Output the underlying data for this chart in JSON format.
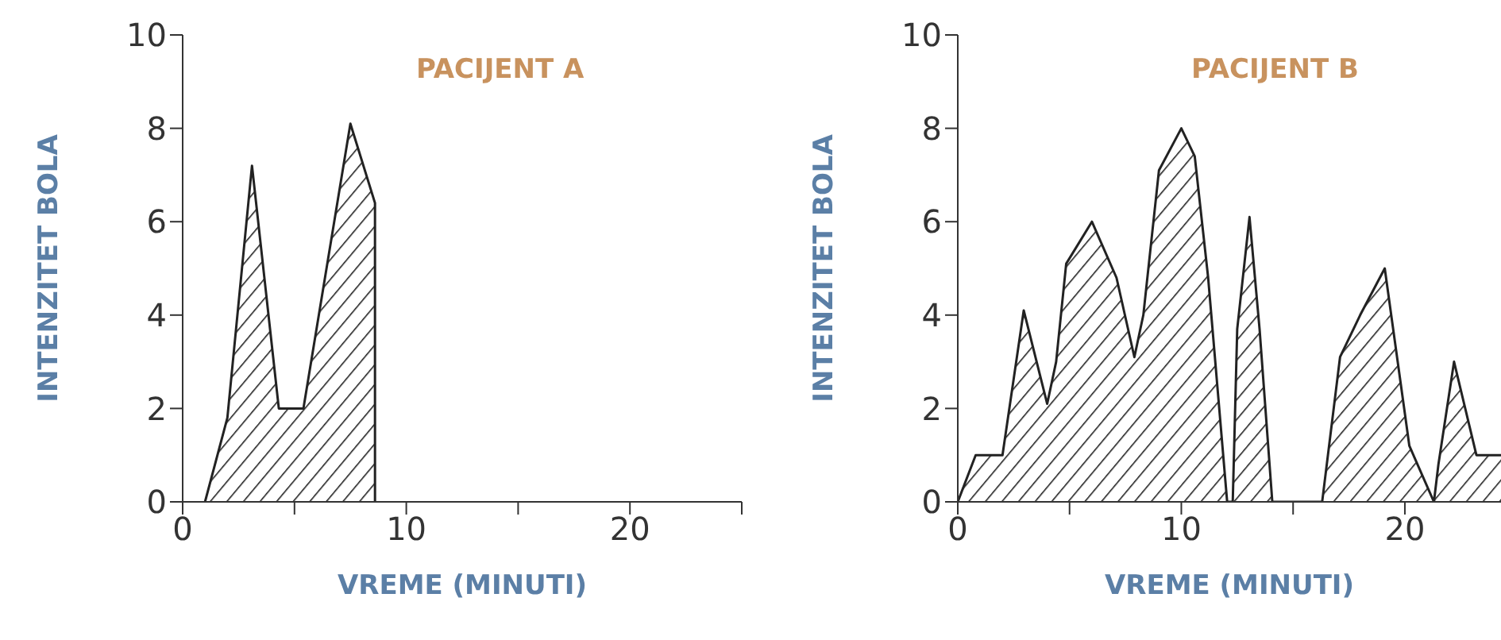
{
  "chart_data": [
    {
      "type": "area",
      "title": "PACIJENT A",
      "xlabel": "VREME (MINUTI)",
      "ylabel": "INTENZITET BOLA",
      "xlim": [
        0,
        25
      ],
      "xticks": [
        0,
        {
          "value": 5,
          "label": null
        },
        10,
        {
          "value": 15,
          "label": null
        },
        20,
        {
          "value": 25,
          "label": null
        }
      ],
      "ylim": [
        0,
        10
      ],
      "yticks": [
        0,
        2,
        4,
        6,
        8,
        10
      ],
      "series": [
        {
          "color": "#222222",
          "x": [
            1,
            2,
            3.1,
            4.3,
            5.4,
            7.5,
            8.6,
            8.6
          ],
          "values": [
            0,
            1.8,
            7.2,
            2,
            2,
            8.1,
            6.4,
            0
          ]
        }
      ]
    },
    {
      "type": "area",
      "title": "PACIJENT B",
      "xlabel": "VREME (MINUTI)",
      "ylabel": "INTENZITET BOLA",
      "xlim": [
        0,
        24.3
      ],
      "xticks": [
        0,
        {
          "value": 5,
          "label": null
        },
        10,
        {
          "value": 15,
          "label": null
        },
        20
      ],
      "ylim": [
        0,
        10
      ],
      "yticks": [
        0,
        2,
        4,
        6,
        8,
        10
      ],
      "series": [
        {
          "color": "#222222",
          "x": [
            0,
            0.8,
            2,
            2.95,
            4,
            4.4,
            4.85,
            6,
            7.1,
            7.9,
            8.3,
            9,
            10,
            10.6,
            11.2,
            12.05,
            12.3,
            12.5,
            13.05,
            13.5,
            14.07,
            16.3,
            17.1,
            18,
            19.1,
            20.2,
            21.3,
            21.5,
            22.2,
            23.2,
            24.3
          ],
          "values": [
            0,
            1,
            1,
            4.1,
            2.1,
            3,
            5.1,
            6,
            4.8,
            3.1,
            4,
            7.1,
            8,
            7.4,
            4.8,
            0,
            0,
            3.7,
            6.1,
            3.7,
            0,
            0,
            3.1,
            4,
            5,
            1.2,
            0,
            0.8,
            3,
            1,
            1
          ]
        }
      ]
    }
  ]
}
